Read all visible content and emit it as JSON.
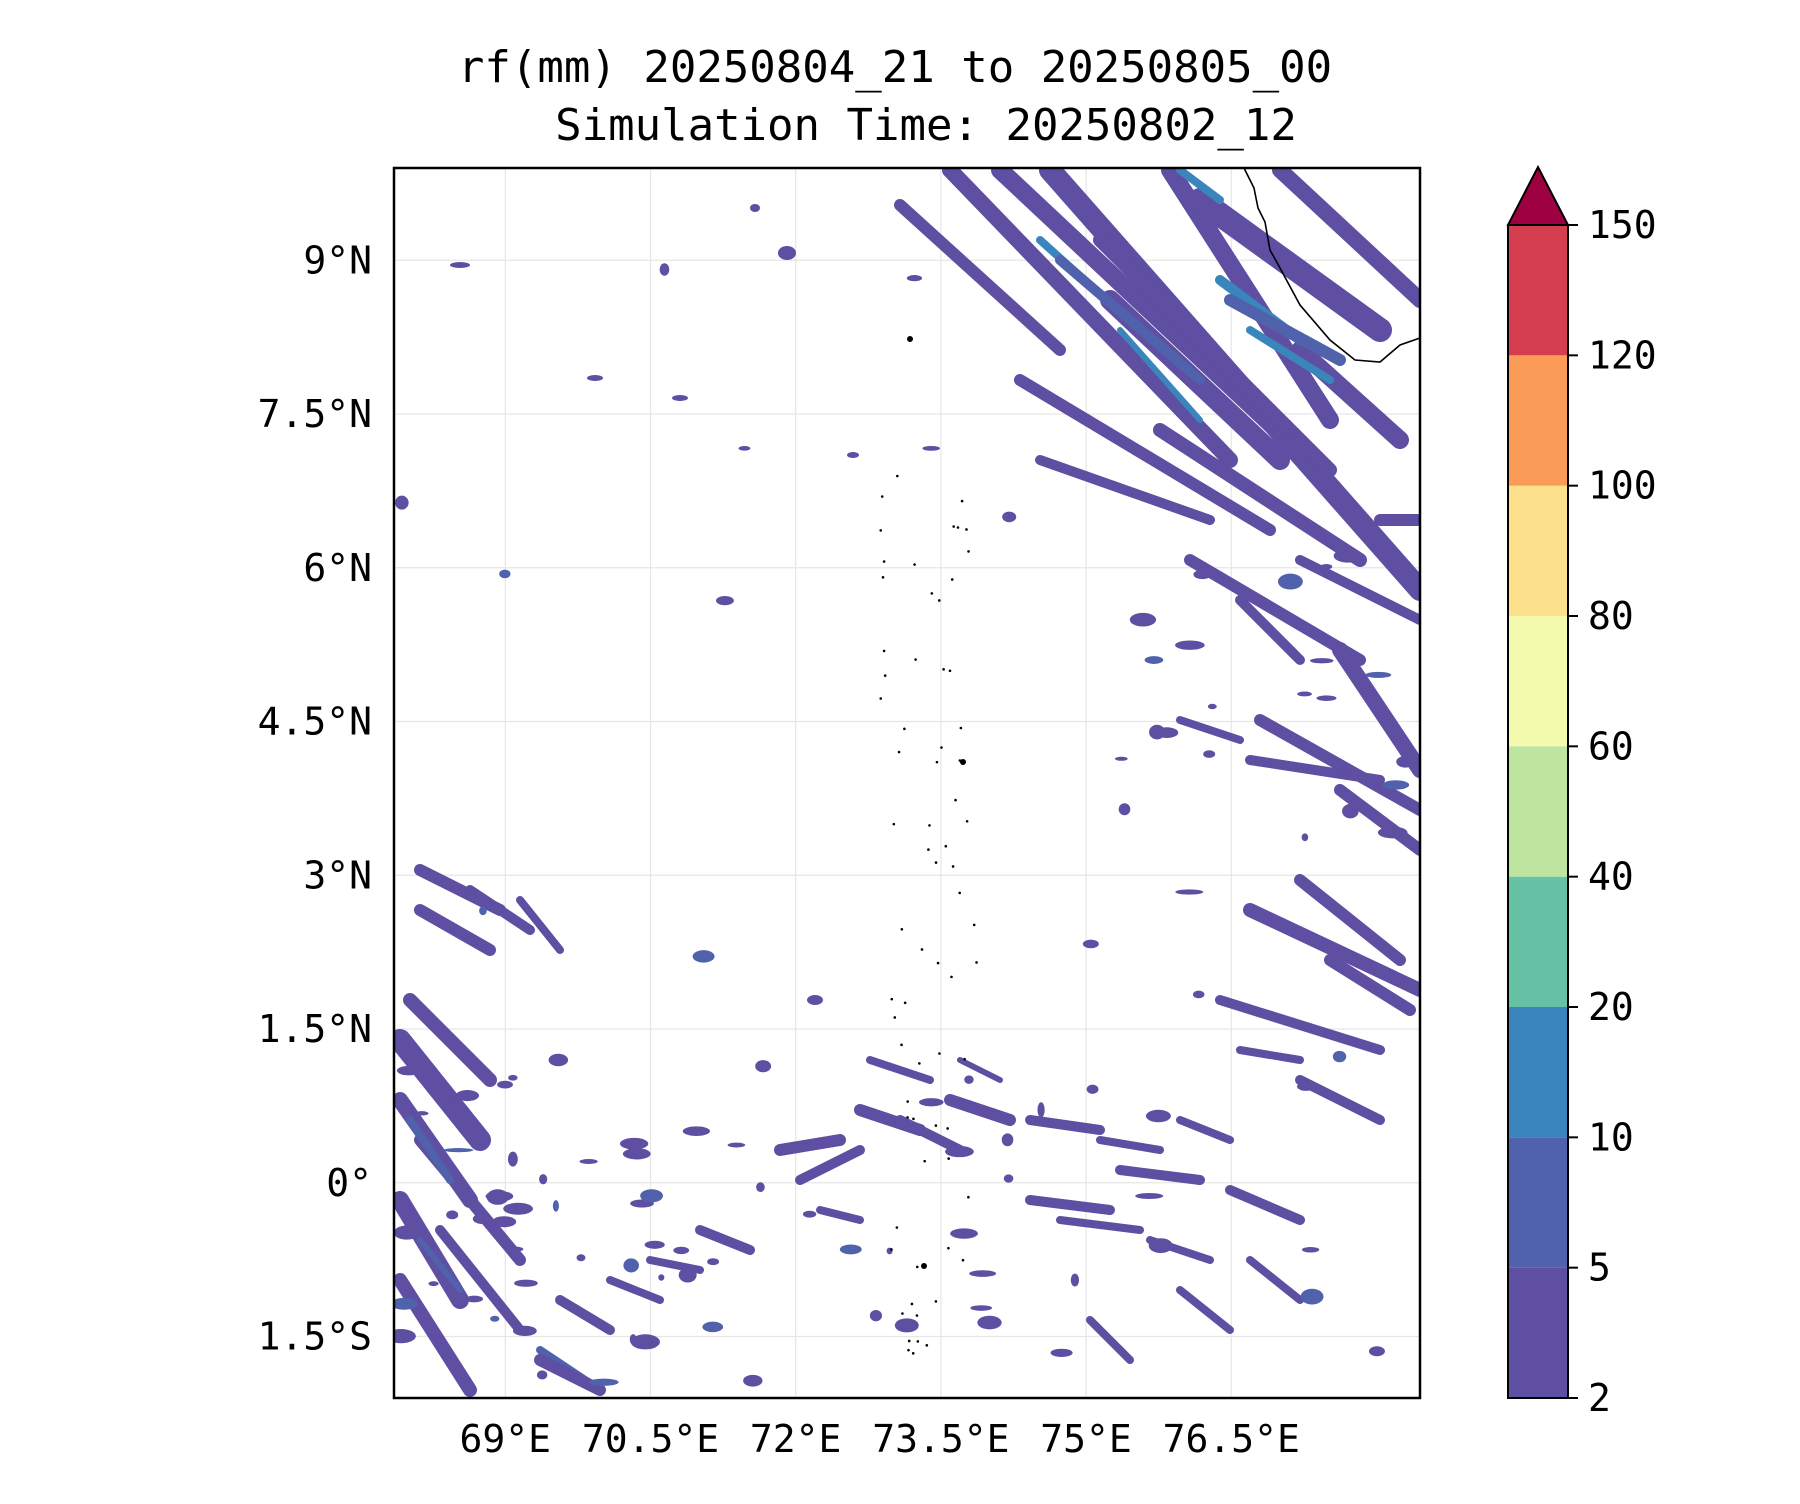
{
  "title": {
    "line1": "rf(mm) 20250804_21 to 20250805_00",
    "line2": "Simulation Time: 20250802_12"
  },
  "map": {
    "lon_range": [
      67.85,
      78.45
    ],
    "lat_range": [
      -2.1,
      9.9
    ],
    "lon_ticks": [
      {
        "value": 69.0,
        "label": "69°E"
      },
      {
        "value": 70.5,
        "label": "70.5°E"
      },
      {
        "value": 72.0,
        "label": "72°E"
      },
      {
        "value": 73.5,
        "label": "73.5°E"
      },
      {
        "value": 75.0,
        "label": "75°E"
      },
      {
        "value": 76.5,
        "label": "76.5°E"
      }
    ],
    "lat_ticks": [
      {
        "value": 9.0,
        "label": "9°N"
      },
      {
        "value": 7.5,
        "label": "7.5°N"
      },
      {
        "value": 6.0,
        "label": "6°N"
      },
      {
        "value": 4.5,
        "label": "4.5°N"
      },
      {
        "value": 3.0,
        "label": "3°N"
      },
      {
        "value": 1.5,
        "label": "1.5°N"
      },
      {
        "value": 0.0,
        "label": "0°"
      },
      {
        "value": -1.5,
        "label": "1.5°S"
      }
    ],
    "grid": true,
    "coastline_color": "#000000"
  },
  "colorbar": {
    "levels": [
      "2",
      "5",
      "10",
      "20",
      "40",
      "60",
      "80",
      "100",
      "120",
      "150"
    ],
    "colors": [
      "#5e4fa2",
      "#4f62ab",
      "#3a86bc",
      "#66c2a5",
      "#bde5a0",
      "#f3faad",
      "#fde08b",
      "#fa9c58",
      "#d53e4f"
    ],
    "extend_color": "#9e0142",
    "extend": "max",
    "placement": "right"
  }
}
